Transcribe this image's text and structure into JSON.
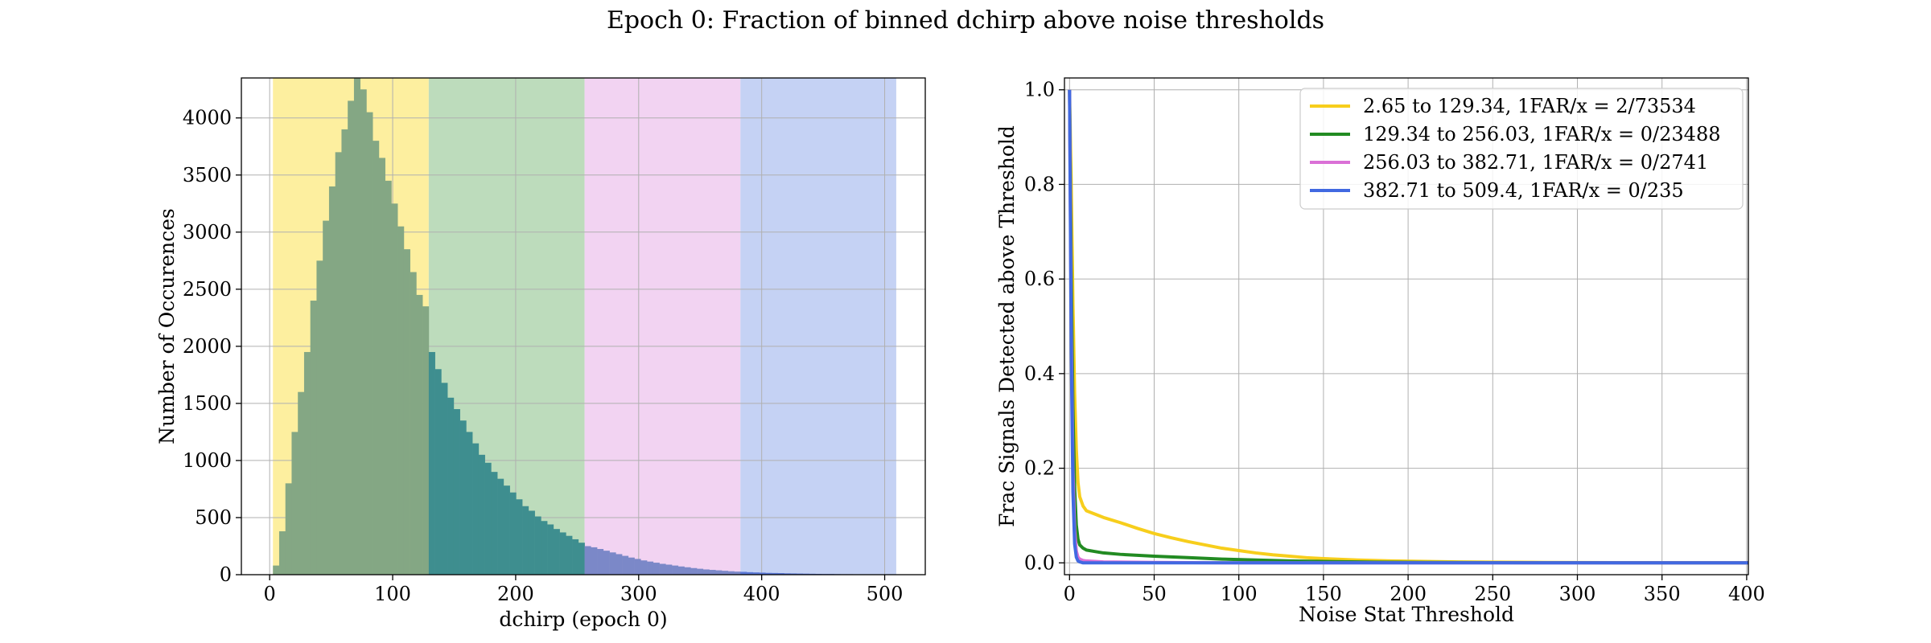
{
  "figure": {
    "suptitle": "Epoch 0: Fraction of binned dchirp above noise thresholds"
  },
  "chart_data": [
    {
      "type": "bar",
      "subtype": "histogram",
      "xlabel": "dchirp (epoch 0)",
      "ylabel": "Number of Occurences",
      "xlim": [
        -23,
        533
      ],
      "ylim": [
        0,
        4350
      ],
      "xticks": [
        0,
        100,
        200,
        300,
        400,
        500
      ],
      "yticks": [
        0,
        500,
        1000,
        1500,
        2000,
        2500,
        3000,
        3500,
        4000
      ],
      "grid": true,
      "bin_width": 5.07,
      "bin_starts": [
        2.65,
        7.72,
        12.79,
        17.85,
        22.92,
        27.99,
        33.06,
        38.12,
        43.19,
        48.26,
        53.33,
        58.4,
        63.46,
        68.53,
        73.6,
        78.67,
        83.73,
        88.8,
        93.87,
        98.94,
        104.01,
        109.07,
        114.14,
        119.21,
        124.28,
        129.34,
        134.41,
        139.48,
        144.55,
        149.62,
        154.68,
        159.75,
        164.82,
        169.89,
        174.95,
        180.02,
        185.09,
        190.16,
        195.23,
        200.29,
        205.36,
        210.43,
        215.5,
        220.56,
        225.63,
        230.7,
        235.77,
        240.84,
        245.9,
        250.97,
        256.04,
        261.11,
        266.17,
        271.24,
        276.31,
        281.38,
        286.45,
        291.51,
        296.58,
        301.65,
        306.72,
        311.78,
        316.85,
        321.92,
        326.99,
        332.06,
        337.12,
        342.19,
        347.26,
        352.33,
        357.39,
        362.46,
        367.53,
        372.6,
        377.67,
        382.73,
        387.8,
        392.87,
        397.94,
        403.0,
        408.07,
        413.14,
        418.21,
        423.28,
        428.34,
        433.41,
        438.48,
        443.55,
        448.61,
        453.68,
        458.75,
        463.82,
        468.89,
        473.95,
        479.02,
        484.09,
        489.16,
        494.22,
        499.29,
        504.36
      ],
      "values": [
        80,
        380,
        800,
        1250,
        1600,
        1950,
        2400,
        2750,
        3100,
        3400,
        3700,
        3900,
        4150,
        4350,
        4250,
        4050,
        3800,
        3650,
        3450,
        3250,
        3050,
        2850,
        2650,
        2450,
        2350,
        1950,
        1800,
        1680,
        1550,
        1450,
        1350,
        1250,
        1150,
        1050,
        980,
        900,
        840,
        780,
        720,
        660,
        600,
        560,
        510,
        470,
        440,
        400,
        370,
        340,
        310,
        280,
        250,
        240,
        225,
        210,
        195,
        180,
        165,
        150,
        138,
        125,
        115,
        105,
        95,
        88,
        80,
        72,
        65,
        58,
        52,
        46,
        42,
        38,
        34,
        30,
        27,
        25,
        22,
        20,
        18,
        16,
        15,
        14,
        12,
        11,
        10,
        9,
        8,
        7,
        6,
        6,
        5,
        4,
        4,
        3,
        3,
        2,
        2,
        2,
        1,
        1
      ],
      "bands": [
        {
          "from": 2.65,
          "to": 129.34,
          "color": "#fdef9f"
        },
        {
          "from": 129.34,
          "to": 256.03,
          "color": "#bddcbc"
        },
        {
          "from": 256.03,
          "to": 382.71,
          "color": "#f2d3f2"
        },
        {
          "from": 382.71,
          "to": 509.4,
          "color": "#c5d2f4"
        }
      ],
      "bar_colors": [
        "#84a784",
        "#3e8e8f",
        "#7b88c8",
        "#5a78d6"
      ]
    },
    {
      "type": "line",
      "xlabel": "Noise Stat Threshold",
      "ylabel": "Frac Signals Detected above Threshold",
      "xlim": [
        -3,
        401
      ],
      "ylim": [
        -0.025,
        1.025
      ],
      "xticks": [
        0,
        50,
        100,
        150,
        200,
        250,
        300,
        350,
        400
      ],
      "yticks": [
        0.0,
        0.2,
        0.4,
        0.6,
        0.8,
        1.0
      ],
      "ytick_labels": [
        "0.0",
        "0.2",
        "0.4",
        "0.6",
        "0.8",
        "1.0"
      ],
      "grid": true,
      "legend_position": "top-right",
      "series": [
        {
          "name": "2.65 to 129.34, 1FAR/x = 2/73534",
          "color": "#f7ce1c",
          "x": [
            0,
            1,
            2,
            3,
            4,
            5,
            6,
            8,
            10,
            15,
            20,
            30,
            40,
            50,
            60,
            70,
            80,
            90,
            100,
            110,
            120,
            130,
            140,
            150,
            170,
            190,
            210,
            230,
            250,
            280,
            320,
            360,
            401
          ],
          "y": [
            1.0,
            0.8,
            0.55,
            0.36,
            0.24,
            0.17,
            0.14,
            0.12,
            0.11,
            0.103,
            0.096,
            0.085,
            0.073,
            0.062,
            0.053,
            0.045,
            0.038,
            0.031,
            0.026,
            0.021,
            0.017,
            0.014,
            0.011,
            0.009,
            0.006,
            0.004,
            0.003,
            0.002,
            0.0015,
            0.001,
            0.0005,
            0.0002,
            0.0001
          ]
        },
        {
          "name": "129.34 to 256.03, 1FAR/x = 0/23488",
          "color": "#228b22",
          "x": [
            0,
            1,
            2,
            3,
            4,
            5,
            6,
            8,
            10,
            15,
            20,
            30,
            40,
            50,
            70,
            90,
            110,
            130,
            150,
            180,
            210,
            250,
            300,
            401
          ],
          "y": [
            1.0,
            0.62,
            0.33,
            0.16,
            0.08,
            0.05,
            0.038,
            0.031,
            0.027,
            0.024,
            0.021,
            0.018,
            0.016,
            0.014,
            0.011,
            0.008,
            0.006,
            0.004,
            0.003,
            0.0015,
            0.001,
            0.0005,
            0.0002,
            0.0
          ]
        },
        {
          "name": "256.03 to 382.71, 1FAR/x = 0/2741",
          "color": "#da70d6",
          "x": [
            0,
            1,
            2,
            3,
            4,
            5,
            6,
            8,
            10,
            20,
            50,
            100,
            401
          ],
          "y": [
            1.0,
            0.5,
            0.2,
            0.07,
            0.025,
            0.012,
            0.008,
            0.005,
            0.004,
            0.002,
            0.001,
            0.0,
            0.0
          ]
        },
        {
          "name": "382.71 to 509.4, 1FAR/x = 0/235",
          "color": "#4169e1",
          "x": [
            0,
            1,
            2,
            3,
            4,
            5,
            6,
            8,
            10,
            50,
            100,
            401
          ],
          "y": [
            1.0,
            0.45,
            0.15,
            0.04,
            0.012,
            0.004,
            0.002,
            0.0,
            0.0,
            0.0,
            0.0,
            0.0
          ]
        }
      ]
    }
  ]
}
